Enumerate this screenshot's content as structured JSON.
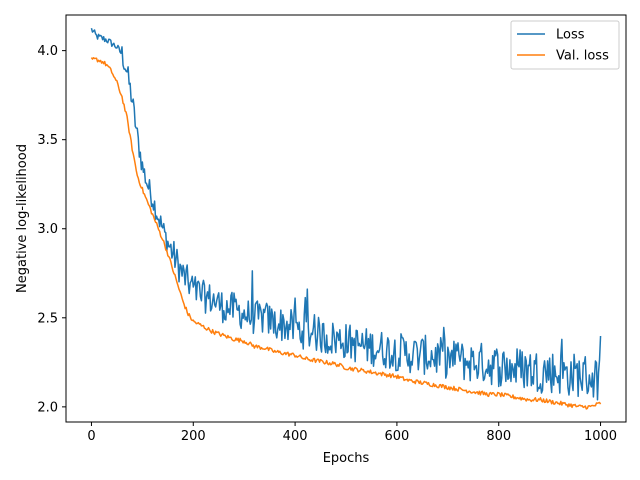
{
  "chart_data": {
    "type": "line",
    "title": "",
    "xlabel": "Epochs",
    "ylabel": "Negative log-likelihood",
    "xlim": [
      -50,
      1050
    ],
    "ylim": [
      1.915,
      4.2
    ],
    "xticks": [
      0,
      200,
      400,
      600,
      800,
      1000
    ],
    "yticks": [
      2.0,
      2.5,
      3.0,
      3.5,
      4.0
    ],
    "xtick_labels": [
      "0",
      "200",
      "400",
      "600",
      "800",
      "1000"
    ],
    "ytick_labels": [
      "2.0",
      "2.5",
      "3.0",
      "3.5",
      "4.0"
    ],
    "grid": false,
    "legend_position": "top-right",
    "series": [
      {
        "name": "Loss",
        "color": "#1f77b4",
        "x": [
          0,
          10,
          20,
          30,
          40,
          50,
          60,
          70,
          80,
          90,
          100,
          110,
          120,
          130,
          140,
          150,
          160,
          170,
          180,
          190,
          200,
          220,
          240,
          260,
          280,
          300,
          320,
          340,
          360,
          380,
          400,
          420,
          440,
          460,
          480,
          500,
          520,
          540,
          560,
          580,
          600,
          620,
          640,
          660,
          680,
          700,
          720,
          740,
          760,
          780,
          800,
          820,
          840,
          860,
          880,
          900,
          920,
          940,
          960,
          980,
          1000
        ],
        "y": [
          4.12,
          4.08,
          4.07,
          4.06,
          4.04,
          4.02,
          3.98,
          3.88,
          3.72,
          3.52,
          3.35,
          3.25,
          3.17,
          3.08,
          3.0,
          2.92,
          2.86,
          2.8,
          2.74,
          2.7,
          2.66,
          2.62,
          2.6,
          2.56,
          2.55,
          2.52,
          2.5,
          2.5,
          2.47,
          2.46,
          2.44,
          2.42,
          2.41,
          2.39,
          2.38,
          2.37,
          2.35,
          2.34,
          2.33,
          2.32,
          2.31,
          2.3,
          2.29,
          2.29,
          2.28,
          2.27,
          2.26,
          2.25,
          2.25,
          2.24,
          2.23,
          2.22,
          2.22,
          2.21,
          2.2,
          2.2,
          2.19,
          2.18,
          2.18,
          2.17,
          2.15
        ],
        "noise_amplitude": 0.08
      },
      {
        "name": "Val. loss",
        "color": "#ff7f0e",
        "x": [
          0,
          10,
          20,
          30,
          40,
          50,
          60,
          70,
          80,
          90,
          100,
          110,
          120,
          130,
          140,
          150,
          160,
          170,
          180,
          190,
          200,
          220,
          240,
          260,
          280,
          300,
          320,
          340,
          360,
          380,
          400,
          420,
          440,
          460,
          480,
          500,
          520,
          540,
          560,
          580,
          600,
          620,
          640,
          660,
          680,
          700,
          720,
          740,
          760,
          780,
          800,
          820,
          840,
          860,
          880,
          900,
          920,
          940,
          960,
          980,
          1000
        ],
        "y": [
          3.95,
          3.95,
          3.94,
          3.92,
          3.88,
          3.82,
          3.74,
          3.62,
          3.45,
          3.3,
          3.22,
          3.15,
          3.08,
          3.01,
          2.94,
          2.86,
          2.77,
          2.68,
          2.59,
          2.52,
          2.48,
          2.45,
          2.42,
          2.4,
          2.38,
          2.37,
          2.34,
          2.33,
          2.31,
          2.3,
          2.29,
          2.27,
          2.26,
          2.25,
          2.24,
          2.22,
          2.21,
          2.2,
          2.19,
          2.18,
          2.17,
          2.15,
          2.14,
          2.13,
          2.12,
          2.11,
          2.1,
          2.09,
          2.08,
          2.07,
          2.07,
          2.06,
          2.05,
          2.04,
          2.04,
          2.03,
          2.02,
          2.01,
          2.0,
          2.0,
          2.02
        ],
        "noise_amplitude": 0.012
      }
    ]
  }
}
